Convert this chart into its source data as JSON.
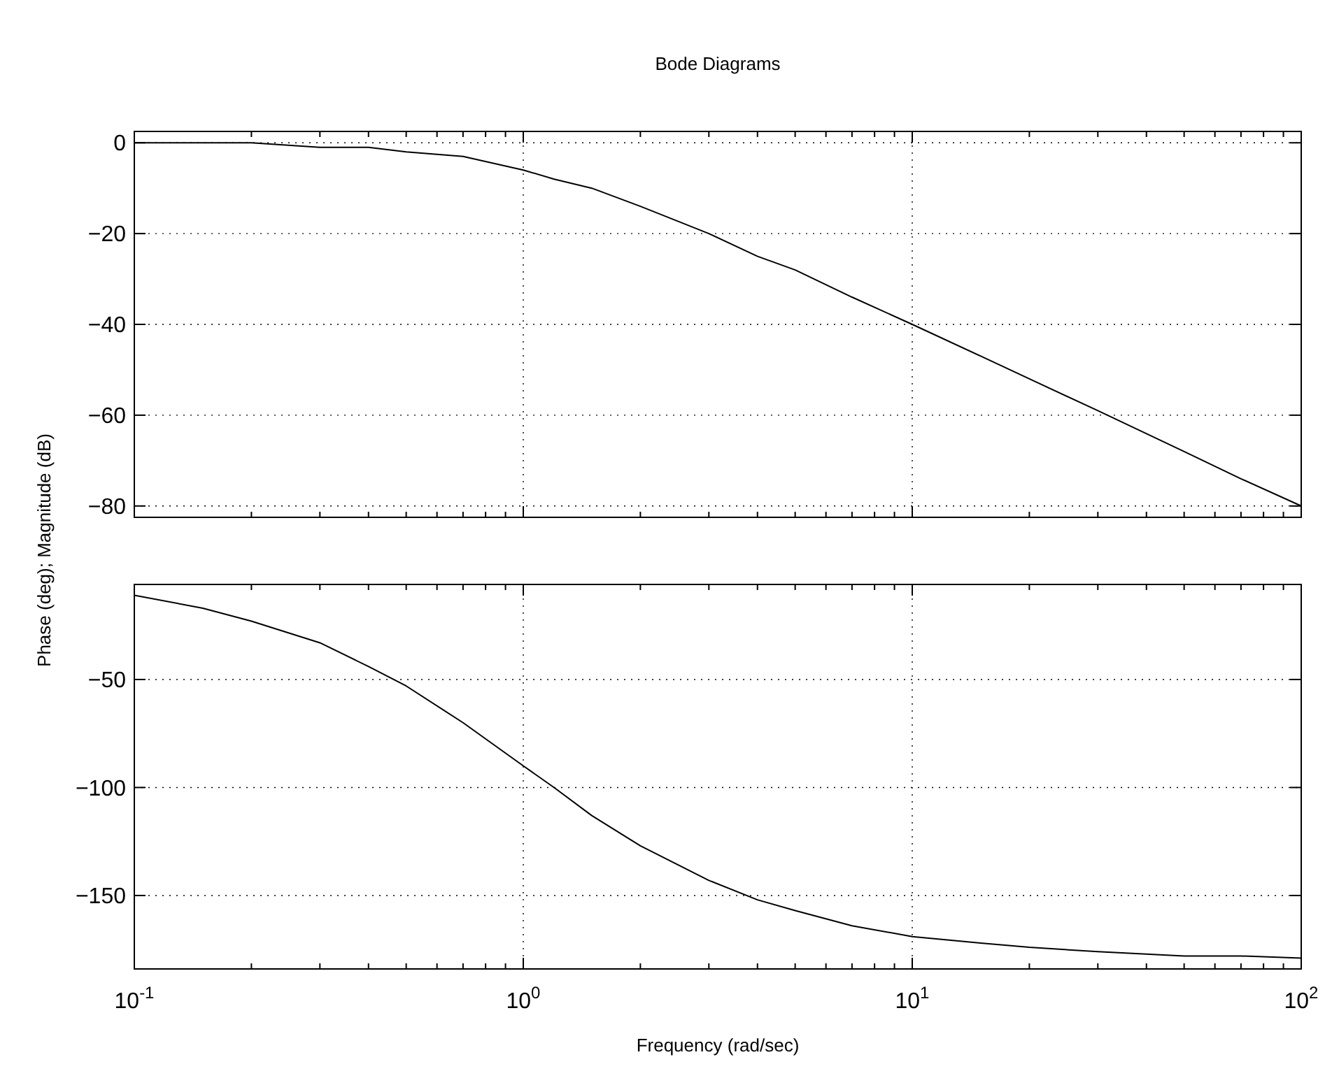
{
  "chart_data": [
    {
      "type": "line",
      "title": "Bode Diagrams",
      "ylabel": "Phase (deg); Magnitude (dB)",
      "log": "x",
      "grid": true,
      "tick_labels": "y",
      "x": [
        0.1,
        0.15,
        0.2,
        0.3,
        0.4,
        0.5,
        0.7,
        1,
        1.2,
        1.5,
        2,
        3,
        4,
        5,
        7,
        10,
        15,
        20,
        30,
        50,
        70,
        100
      ],
      "series": [
        {
          "color": "#000000",
          "values": [
            0,
            0,
            0,
            -1,
            -1,
            -2,
            -3,
            -6,
            -8,
            -10,
            -14,
            -20,
            -25,
            -28,
            -34,
            -40,
            -47,
            -52,
            -59,
            -68,
            -74,
            -80
          ]
        }
      ],
      "xlim": [
        0.1,
        100
      ],
      "xticks": [
        {
          "value": 0.1,
          "label": null
        },
        {
          "value": 1,
          "label": null
        },
        {
          "value": 10,
          "label": null
        },
        {
          "value": 100,
          "label": null
        }
      ],
      "ylim": [
        -82.5,
        2.5
      ],
      "yticks": [
        -80,
        -60,
        -40,
        -20,
        0
      ]
    },
    {
      "type": "line",
      "xlabel": "Frequency (rad/sec)",
      "log": "x",
      "grid": true,
      "x": [
        0.1,
        0.15,
        0.2,
        0.3,
        0.4,
        0.5,
        0.7,
        1,
        1.2,
        1.5,
        2,
        3,
        4,
        5,
        7,
        10,
        15,
        20,
        30,
        50,
        70,
        100
      ],
      "series": [
        {
          "color": "#000000",
          "values": [
            -11,
            -17,
            -23,
            -33,
            -44,
            -53,
            -70,
            -90,
            -100,
            -113,
            -127,
            -143,
            -152,
            -157,
            -164,
            -169,
            -172,
            -174,
            -176,
            -178,
            -178,
            -179
          ]
        }
      ],
      "xlim": [
        0.1,
        100
      ],
      "xticks": [
        {
          "value": 0.1,
          "label": "10$^{-1}$"
        },
        {
          "value": 1,
          "label": "10$^{0}$"
        },
        {
          "value": 10,
          "label": "10$^{1}$"
        },
        {
          "value": 100,
          "label": "10$^{2}$"
        }
      ],
      "ylim": [
        -184,
        -6
      ],
      "yticks": [
        -150,
        -100,
        -50
      ]
    }
  ]
}
